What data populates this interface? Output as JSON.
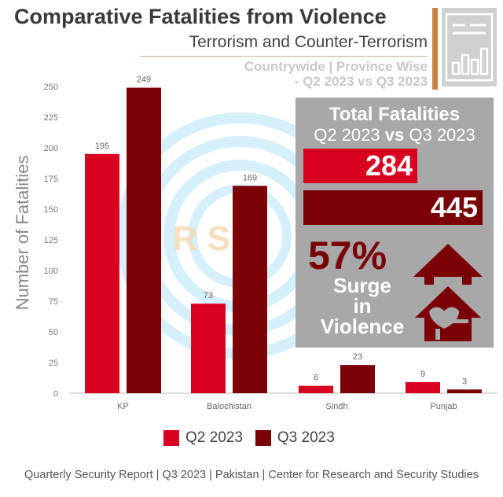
{
  "header": {
    "title": "Comparative Fatalities from Violence",
    "subtitle": "Terrorism and Counter-Terrorism",
    "context_line1": "Countrywide | Province Wise",
    "context_line2": "- Q2 2023 vs Q3 2023"
  },
  "watermark": "C R S S",
  "summary": {
    "title": "Total Fatalities",
    "compare_q2": "Q2 2023",
    "compare_vs": "vs",
    "compare_q3": "Q3 2023",
    "q2_total": "284",
    "q3_total": "445",
    "percent": "57%",
    "surge_line1": "Surge",
    "surge_line2": "in",
    "surge_line3": "Violence"
  },
  "chart_data": {
    "type": "bar",
    "categories": [
      "KP",
      "Balochistan",
      "Sindh",
      "Punjab"
    ],
    "series": [
      {
        "name": "Q2 2023",
        "values": [
          195,
          73,
          6,
          9
        ],
        "color": "#d9001f"
      },
      {
        "name": "Q3 2023",
        "values": [
          249,
          169,
          23,
          3
        ],
        "color": "#7a0006"
      }
    ],
    "ylabel": "Number of Fatalities",
    "xlabel": "",
    "ylim": [
      0,
      260
    ],
    "yticks": [
      0,
      25,
      50,
      75,
      100,
      125,
      150,
      175,
      200,
      225,
      250
    ],
    "data_labels": true,
    "legend_position": "bottom"
  },
  "footer": "Quarterly Security Report | Q3 2023 | Pakistan | Center for Research and Security Studies"
}
